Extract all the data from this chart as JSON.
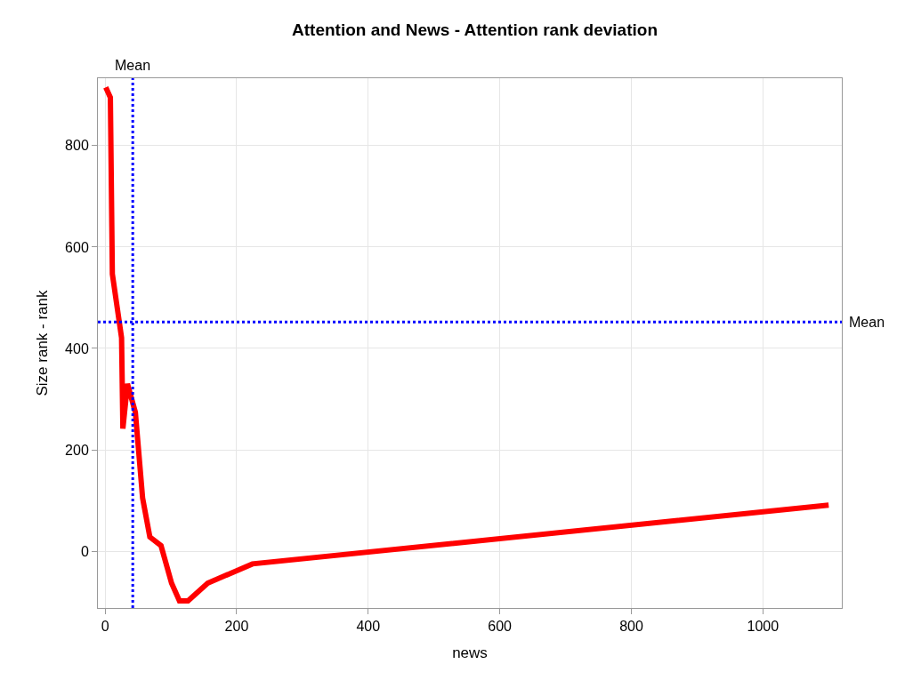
{
  "chart_data": {
    "type": "line",
    "title": "Attention and News - Attention rank deviation",
    "xlabel": "news",
    "ylabel": "Size rank - rank",
    "x": [
      1,
      8,
      11,
      25,
      27,
      34,
      46,
      57,
      68,
      85,
      101,
      113,
      126,
      156,
      224,
      1100
    ],
    "series": [
      {
        "color": "#ff0000",
        "values": [
          915,
          895,
          547,
          421,
          242,
          330,
          274,
          105,
          28,
          11,
          -63,
          -98,
          -98,
          -63,
          -25,
          91
        ]
      }
    ],
    "xlim": [
      -11,
      1120
    ],
    "ylim": [
      -112,
      933
    ],
    "xticks": [
      0,
      200,
      400,
      600,
      800,
      1000
    ],
    "yticks": [
      0,
      200,
      400,
      600,
      800
    ],
    "grid": true,
    "line_style": "solid",
    "marker": "none",
    "ref_lines": [
      {
        "axis": "x",
        "value": 42,
        "label": "Mean",
        "color": "#0000ff",
        "line_style": "dotted"
      },
      {
        "axis": "y",
        "value": 452,
        "label": "Mean",
        "color": "#0000ff",
        "line_style": "dotted"
      }
    ]
  }
}
